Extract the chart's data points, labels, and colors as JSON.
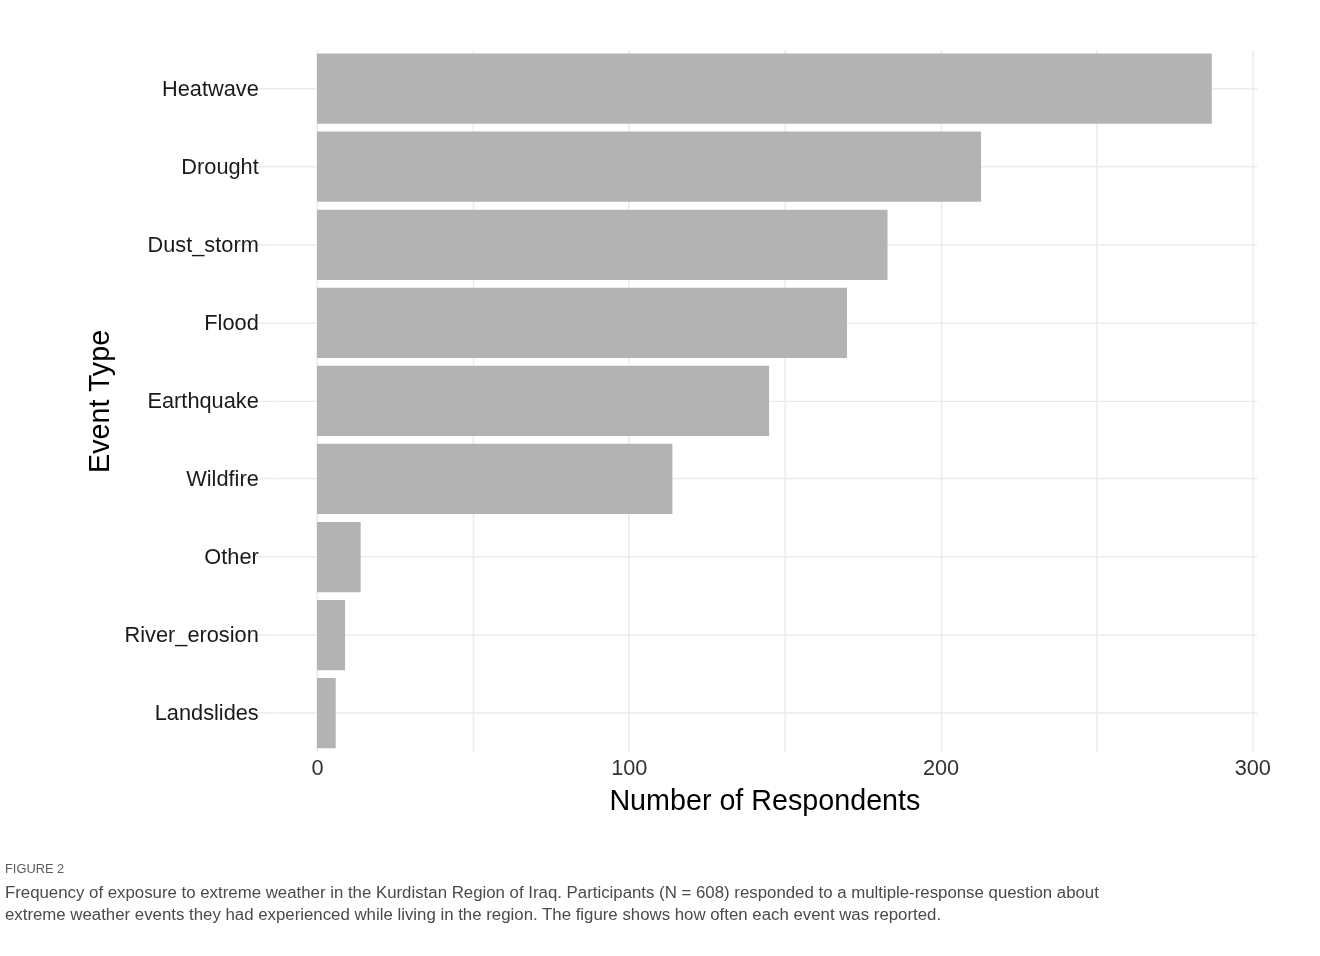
{
  "chart_data": {
    "type": "bar",
    "orientation": "horizontal",
    "xlabel": "Number of Respondents",
    "ylabel": "Event Type",
    "categories": [
      "Heatwave",
      "Drought",
      "Dust_storm",
      "Flood",
      "Earthquake",
      "Wildfire",
      "Other",
      "River_erosion",
      "Landslides"
    ],
    "values": [
      287,
      213,
      183,
      170,
      145,
      114,
      14,
      9,
      6
    ],
    "color": "#b3b3b3",
    "xlim": [
      -14.4,
      301.4
    ],
    "xticks": [
      0,
      {
        "value": 50,
        "label": null
      },
      100,
      {
        "value": 150,
        "label": null
      },
      200,
      {
        "value": 250,
        "label": null
      },
      300
    ],
    "grid": true,
    "annotations": [
      "FIGURE 2",
      "Frequency of exposure to extreme weather in the Kurdistan Region of Iraq. Participants (N = 608) responded to a multiple-response question about extreme weather events they had experienced while living in the region. The figure shows how often each event was reported."
    ]
  }
}
